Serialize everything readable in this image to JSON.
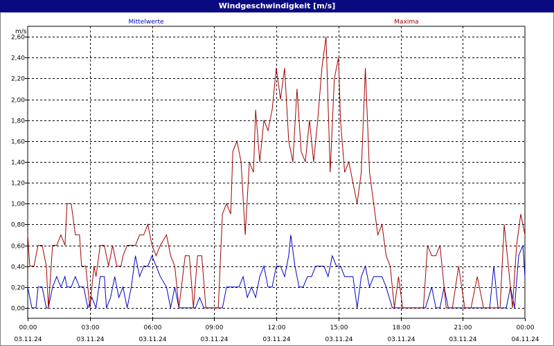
{
  "window": {
    "title": "Windgeschwindigkeit [m/s]"
  },
  "colors": {
    "title_bg": "#0a0a80",
    "mean_series": "#0000c0",
    "max_series": "#a00000",
    "grid": "#000000"
  },
  "chart_data": {
    "type": "line",
    "title": "Windgeschwindigkeit [m/s]",
    "ylabel": "m/s",
    "xlabel": "",
    "ylim": [
      -0.1,
      2.7
    ],
    "yticks": [
      0.0,
      0.2,
      0.4,
      0.6,
      0.8,
      1.0,
      1.2,
      1.4,
      1.6,
      1.8,
      2.0,
      2.2,
      2.4,
      2.6
    ],
    "ytick_labels": [
      "0,00",
      "0,20",
      "0,40",
      "0,60",
      "0,80",
      "1,00",
      "1,20",
      "1,40",
      "1,60",
      "1,80",
      "2,00",
      "2,20",
      "2,40",
      "2,60"
    ],
    "xlim": [
      0,
      24
    ],
    "xticks": [
      0,
      3,
      6,
      9,
      12,
      15,
      18,
      21,
      24
    ],
    "xtick_labels": [
      {
        "time": "00:00",
        "date": "03.11.24"
      },
      {
        "time": "03:00",
        "date": "03.11.24"
      },
      {
        "time": "06:00",
        "date": "03.11.24"
      },
      {
        "time": "09:00",
        "date": "03.11.24"
      },
      {
        "time": "12:00",
        "date": "03.11.24"
      },
      {
        "time": "15:00",
        "date": "03.11.24"
      },
      {
        "time": "18:00",
        "date": "03.11.24"
      },
      {
        "time": "21:00",
        "date": "03.11.24"
      },
      {
        "time": "00:00",
        "date": "04.11.24"
      }
    ],
    "grid": true,
    "legend": "top",
    "series": [
      {
        "name": "Mittelwerte",
        "color": "#0000c0",
        "x": [
          0.0,
          0.2,
          0.4,
          0.5,
          0.7,
          0.9,
          1.0,
          1.2,
          1.4,
          1.6,
          1.8,
          1.9,
          2.1,
          2.3,
          2.5,
          2.7,
          2.9,
          3.1,
          3.3,
          3.5,
          3.7,
          3.8,
          4.0,
          4.2,
          4.4,
          4.6,
          4.8,
          5.0,
          5.2,
          5.4,
          5.6,
          5.8,
          6.0,
          6.2,
          6.4,
          6.7,
          6.9,
          7.1,
          7.3,
          7.6,
          7.8,
          8.1,
          8.3,
          8.5,
          8.7,
          9.0,
          9.2,
          9.4,
          9.6,
          9.8,
          10.0,
          10.2,
          10.4,
          10.6,
          10.8,
          11.0,
          11.2,
          11.4,
          11.6,
          11.8,
          12.0,
          12.2,
          12.4,
          12.6,
          12.7,
          12.9,
          13.1,
          13.3,
          13.5,
          13.7,
          13.9,
          14.1,
          14.3,
          14.5,
          14.7,
          14.9,
          15.1,
          15.3,
          15.5,
          15.7,
          15.9,
          16.1,
          16.3,
          16.5,
          16.7,
          16.9,
          17.1,
          17.3,
          17.6,
          17.9,
          18.2,
          18.5,
          18.8,
          19.0,
          19.2,
          19.5,
          19.7,
          19.9,
          20.1,
          20.3,
          20.5,
          20.8,
          21.1,
          21.4,
          21.7,
          21.9,
          22.1,
          22.3,
          22.5,
          22.7,
          22.9,
          23.1,
          23.3,
          23.5,
          23.7,
          23.9,
          24.0
        ],
        "values": [
          0.2,
          0.0,
          0.0,
          0.2,
          0.2,
          0.0,
          0.0,
          0.2,
          0.3,
          0.2,
          0.3,
          0.2,
          0.2,
          0.3,
          0.2,
          0.2,
          0.0,
          0.1,
          0.0,
          0.3,
          0.3,
          0.0,
          0.1,
          0.3,
          0.1,
          0.2,
          0.0,
          0.2,
          0.5,
          0.3,
          0.4,
          0.4,
          0.5,
          0.4,
          0.3,
          0.2,
          0.0,
          0.2,
          0.0,
          0.0,
          0.0,
          0.0,
          0.1,
          0.0,
          0.0,
          0.0,
          0.0,
          0.0,
          0.2,
          0.2,
          0.2,
          0.2,
          0.3,
          0.1,
          0.2,
          0.1,
          0.3,
          0.4,
          0.2,
          0.2,
          0.4,
          0.4,
          0.3,
          0.5,
          0.7,
          0.4,
          0.2,
          0.2,
          0.3,
          0.3,
          0.4,
          0.4,
          0.4,
          0.3,
          0.5,
          0.4,
          0.4,
          0.3,
          0.3,
          0.3,
          0.0,
          0.3,
          0.4,
          0.2,
          0.3,
          0.3,
          0.3,
          0.2,
          0.0,
          0.0,
          0.0,
          0.0,
          0.0,
          0.0,
          0.0,
          0.2,
          0.0,
          0.0,
          0.2,
          0.0,
          0.0,
          0.0,
          0.0,
          0.0,
          0.0,
          0.0,
          0.0,
          0.0,
          0.4,
          0.0,
          0.0,
          0.0,
          0.2,
          0.0,
          0.5,
          0.6,
          0.3
        ]
      },
      {
        "name": "Maxima",
        "color": "#a00000",
        "x": [
          0.0,
          0.1,
          0.3,
          0.5,
          0.7,
          0.9,
          1.0,
          1.2,
          1.4,
          1.6,
          1.8,
          1.9,
          2.1,
          2.3,
          2.5,
          2.6,
          2.8,
          3.0,
          3.2,
          3.3,
          3.5,
          3.7,
          3.9,
          4.1,
          4.3,
          4.5,
          4.6,
          4.8,
          5.0,
          5.2,
          5.4,
          5.6,
          5.8,
          6.0,
          6.2,
          6.4,
          6.7,
          6.9,
          7.1,
          7.3,
          7.6,
          7.8,
          8.0,
          8.2,
          8.4,
          8.6,
          8.8,
          9.0,
          9.2,
          9.4,
          9.6,
          9.8,
          9.9,
          10.1,
          10.3,
          10.5,
          10.7,
          10.9,
          11.0,
          11.2,
          11.4,
          11.6,
          11.8,
          12.0,
          12.2,
          12.4,
          12.6,
          12.8,
          13.0,
          13.2,
          13.4,
          13.6,
          13.8,
          14.0,
          14.2,
          14.4,
          14.6,
          14.8,
          15.0,
          15.1,
          15.3,
          15.5,
          15.7,
          15.9,
          16.1,
          16.3,
          16.5,
          16.7,
          16.9,
          17.1,
          17.3,
          17.5,
          17.7,
          17.9,
          18.1,
          18.3,
          18.5,
          18.7,
          18.9,
          19.1,
          19.3,
          19.5,
          19.7,
          19.9,
          20.2,
          20.5,
          20.8,
          21.1,
          21.4,
          21.7,
          22.0,
          22.2,
          22.4,
          22.6,
          22.8,
          23.0,
          23.2,
          23.4,
          23.6,
          23.8,
          24.0
        ],
        "values": [
          0.7,
          0.4,
          0.4,
          0.6,
          0.6,
          0.4,
          0.0,
          0.6,
          0.6,
          0.7,
          0.6,
          1.0,
          1.0,
          0.7,
          0.7,
          0.4,
          0.4,
          0.0,
          0.4,
          0.3,
          0.6,
          0.6,
          0.4,
          0.6,
          0.4,
          0.4,
          0.5,
          0.6,
          0.6,
          0.6,
          0.7,
          0.7,
          0.8,
          0.6,
          0.5,
          0.6,
          0.7,
          0.5,
          0.4,
          0.0,
          0.5,
          0.5,
          0.0,
          0.5,
          0.5,
          0.0,
          0.0,
          0.0,
          0.0,
          0.9,
          1.0,
          0.9,
          1.5,
          1.6,
          1.4,
          0.7,
          1.4,
          1.3,
          1.9,
          1.4,
          1.8,
          1.7,
          1.9,
          2.3,
          2.0,
          2.3,
          1.6,
          1.4,
          2.1,
          1.5,
          1.4,
          1.8,
          1.4,
          1.8,
          2.3,
          2.6,
          1.3,
          2.2,
          2.4,
          1.8,
          1.3,
          1.4,
          1.2,
          1.0,
          1.3,
          2.3,
          1.3,
          1.0,
          0.7,
          0.8,
          0.5,
          0.4,
          0.0,
          0.3,
          0.0,
          0.0,
          0.0,
          0.0,
          0.0,
          0.0,
          0.6,
          0.5,
          0.5,
          0.6,
          0.0,
          0.0,
          0.4,
          0.0,
          0.0,
          0.3,
          0.0,
          0.0,
          0.0,
          0.0,
          0.0,
          0.8,
          0.4,
          0.0,
          0.6,
          0.9,
          0.7
        ]
      }
    ]
  }
}
